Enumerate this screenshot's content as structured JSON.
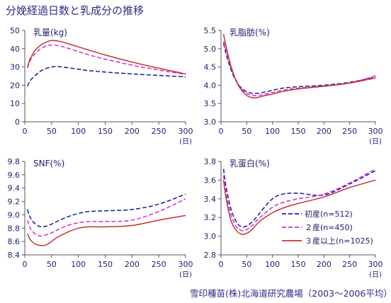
{
  "title": "分娩経過日数と乳成分の推移",
  "source": "雪印種苗(株)北海道研究農場（2003～2006平均）",
  "chart_data": [
    {
      "type": "line",
      "title": "乳量(kg)",
      "xlim": [
        0,
        300
      ],
      "ylim": [
        0,
        50
      ],
      "xticks": [
        "0",
        "50",
        "100",
        "150",
        "200",
        "250",
        "300"
      ],
      "yticks": [
        "0",
        "10",
        "20",
        "30",
        "40",
        "50"
      ],
      "xunit": "(日)",
      "grid": false,
      "series": [
        {
          "name": "初産(n=512)",
          "color": "#1a1a9a",
          "dash": "dash",
          "x": [
            5,
            10,
            20,
            30,
            40,
            50,
            60,
            70,
            80,
            100,
            120,
            150,
            200,
            250,
            300
          ],
          "y": [
            19.5,
            22.5,
            25.5,
            27.8,
            29.2,
            30.0,
            30.2,
            30.0,
            29.6,
            28.8,
            28.0,
            27.2,
            26.2,
            25.4,
            24.6
          ]
        },
        {
          "name": "２産(n=450)",
          "color": "#d42ed4",
          "dash": "dash",
          "x": [
            5,
            10,
            20,
            30,
            40,
            50,
            60,
            70,
            80,
            100,
            120,
            150,
            200,
            250,
            300
          ],
          "y": [
            29.5,
            33.5,
            37.5,
            40.0,
            41.5,
            42.0,
            41.8,
            41.2,
            40.3,
            38.4,
            36.6,
            34.3,
            31.0,
            28.3,
            25.9
          ]
        },
        {
          "name": "３産以上(n=1025)",
          "color": "#c83232",
          "dash": "solid",
          "x": [
            5,
            10,
            20,
            30,
            40,
            50,
            60,
            70,
            80,
            100,
            120,
            150,
            200,
            250,
            300
          ],
          "y": [
            30.0,
            34.5,
            39.3,
            42.0,
            43.7,
            44.5,
            44.3,
            43.7,
            42.8,
            41.0,
            39.2,
            36.6,
            32.7,
            29.3,
            26.2
          ]
        }
      ],
      "legend": ""
    },
    {
      "type": "line",
      "title": "乳脂肪(%)",
      "xlim": [
        0,
        300
      ],
      "ylim": [
        3.0,
        5.5
      ],
      "xticks": [
        "0",
        "50",
        "100",
        "150",
        "200",
        "250",
        "300"
      ],
      "yticks": [
        "3.0",
        "3.5",
        "4.0",
        "4.5",
        "5.0",
        "5.5"
      ],
      "xunit": "(日)",
      "grid": false,
      "series": [
        {
          "name": "初産(n=512)",
          "color": "#1a1a9a",
          "dash": "dash",
          "x": [
            5,
            10,
            20,
            30,
            40,
            50,
            60,
            70,
            80,
            100,
            120,
            150,
            200,
            250,
            300
          ],
          "y": [
            5.15,
            4.85,
            4.4,
            4.1,
            3.92,
            3.82,
            3.78,
            3.78,
            3.8,
            3.86,
            3.92,
            3.96,
            4.0,
            4.08,
            4.22
          ]
        },
        {
          "name": "２産(n=450)",
          "color": "#d42ed4",
          "dash": "dash",
          "x": [
            5,
            10,
            20,
            30,
            40,
            50,
            60,
            70,
            80,
            100,
            120,
            150,
            200,
            250,
            300
          ],
          "y": [
            5.2,
            4.95,
            4.45,
            4.12,
            3.9,
            3.78,
            3.72,
            3.72,
            3.74,
            3.8,
            3.86,
            3.92,
            3.98,
            4.06,
            4.26
          ]
        },
        {
          "name": "３産以上(n=1025)",
          "color": "#c83232",
          "dash": "solid",
          "x": [
            5,
            10,
            20,
            30,
            40,
            50,
            60,
            70,
            80,
            100,
            120,
            150,
            200,
            250,
            300
          ],
          "y": [
            5.4,
            5.05,
            4.5,
            4.1,
            3.86,
            3.72,
            3.66,
            3.66,
            3.7,
            3.76,
            3.83,
            3.9,
            3.97,
            4.06,
            4.2
          ]
        }
      ],
      "legend": ""
    },
    {
      "type": "line",
      "title": "SNF(%)",
      "xlim": [
        0,
        300
      ],
      "ylim": [
        8.4,
        9.8
      ],
      "xticks": [
        "0",
        "50",
        "100",
        "150",
        "200",
        "250",
        "300"
      ],
      "yticks": [
        "8.4",
        "8.6",
        "8.8",
        "9.0",
        "9.2",
        "9.4",
        "9.6",
        "9.8"
      ],
      "xunit": "(日)",
      "grid": false,
      "series": [
        {
          "name": "初産(n=512)",
          "color": "#1a1a9a",
          "dash": "dash",
          "x": [
            5,
            10,
            20,
            30,
            40,
            50,
            60,
            80,
            100,
            120,
            150,
            200,
            250,
            300
          ],
          "y": [
            9.08,
            8.96,
            8.86,
            8.82,
            8.83,
            8.86,
            8.9,
            8.97,
            9.02,
            9.05,
            9.06,
            9.08,
            9.16,
            9.31
          ]
        },
        {
          "name": "２産(n=450)",
          "color": "#d42ed4",
          "dash": "dash",
          "x": [
            5,
            10,
            20,
            30,
            40,
            50,
            60,
            80,
            100,
            120,
            150,
            200,
            250,
            300
          ],
          "y": [
            8.92,
            8.8,
            8.71,
            8.68,
            8.7,
            8.73,
            8.77,
            8.84,
            8.88,
            8.9,
            8.9,
            8.92,
            9.05,
            9.24
          ]
        },
        {
          "name": "３産以上(n=1025)",
          "color": "#c83232",
          "dash": "solid",
          "x": [
            5,
            10,
            20,
            30,
            40,
            50,
            60,
            80,
            100,
            120,
            150,
            200,
            250,
            300
          ],
          "y": [
            8.72,
            8.63,
            8.56,
            8.54,
            8.55,
            8.6,
            8.66,
            8.74,
            8.8,
            8.82,
            8.82,
            8.84,
            8.92,
            8.99
          ]
        }
      ],
      "legend": ""
    },
    {
      "type": "line",
      "title": "乳蛋白(%)",
      "xlim": [
        0,
        300
      ],
      "ylim": [
        2.8,
        3.8
      ],
      "xticks": [
        "0",
        "50",
        "100",
        "150",
        "200",
        "250",
        "300"
      ],
      "yticks": [
        "2.8",
        "3.0",
        "3.2",
        "3.4",
        "3.6",
        "3.8"
      ],
      "xunit": "(日)",
      "grid": false,
      "series": [
        {
          "name": "初産(n=512)",
          "color": "#1a1a9a",
          "dash": "dash",
          "x": [
            5,
            10,
            20,
            30,
            40,
            50,
            60,
            70,
            80,
            100,
            120,
            150,
            200,
            250,
            300
          ],
          "y": [
            3.72,
            3.52,
            3.28,
            3.15,
            3.1,
            3.11,
            3.15,
            3.21,
            3.28,
            3.4,
            3.45,
            3.46,
            3.44,
            3.56,
            3.7
          ]
        },
        {
          "name": "２産(n=450)",
          "color": "#d42ed4",
          "dash": "dash",
          "x": [
            5,
            10,
            20,
            30,
            40,
            50,
            60,
            70,
            80,
            100,
            120,
            150,
            200,
            250,
            300
          ],
          "y": [
            3.65,
            3.45,
            3.22,
            3.1,
            3.06,
            3.07,
            3.11,
            3.17,
            3.22,
            3.31,
            3.36,
            3.4,
            3.45,
            3.57,
            3.72
          ]
        },
        {
          "name": "３産以上(n=1025)",
          "color": "#c83232",
          "dash": "solid",
          "x": [
            5,
            10,
            20,
            30,
            40,
            50,
            60,
            70,
            80,
            100,
            120,
            150,
            200,
            250,
            300
          ],
          "y": [
            3.6,
            3.4,
            3.16,
            3.06,
            3.02,
            3.03,
            3.07,
            3.13,
            3.18,
            3.25,
            3.3,
            3.35,
            3.42,
            3.52,
            3.6
          ]
        }
      ],
      "legend": "right"
    }
  ]
}
